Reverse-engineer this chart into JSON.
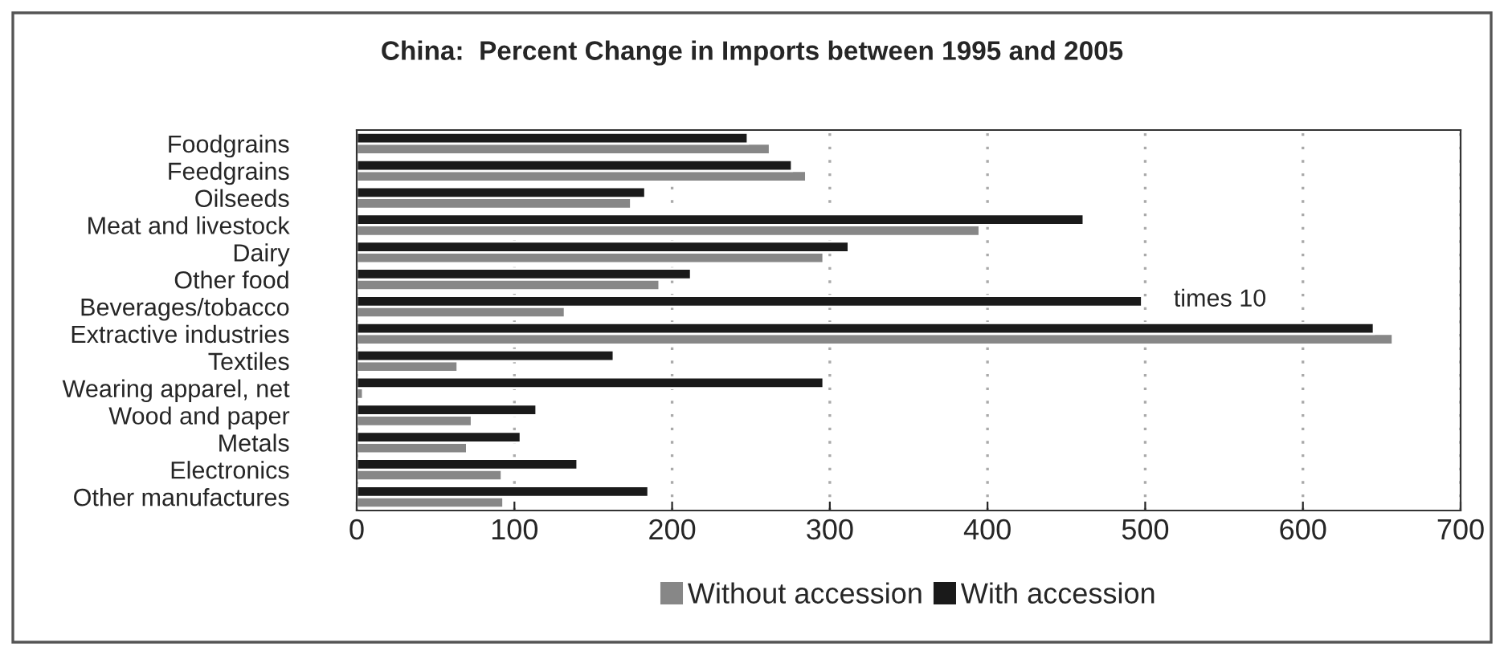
{
  "chart_data": {
    "type": "bar",
    "orientation": "horizontal",
    "title": "China:  Percent Change in Imports between 1995 and 2005",
    "categories": [
      "Foodgrains",
      "Feedgrains",
      "Oilseeds",
      "Meat and livestock",
      "Dairy",
      "Other food",
      "Beverages/tobacco",
      "Extractive industries",
      "Textiles",
      "Wearing apparel, net",
      "Wood and paper",
      "Metals",
      "Electronics",
      "Other manufactures"
    ],
    "series": [
      {
        "name": "Without accession",
        "color": "#878787",
        "values": [
          262,
          285,
          174,
          395,
          296,
          192,
          132,
          657,
          64,
          4,
          73,
          70,
          92,
          93
        ]
      },
      {
        "name": "With accession",
        "color": "#1a1a1a",
        "values": [
          248,
          276,
          183,
          461,
          312,
          212,
          498,
          645,
          163,
          296,
          114,
          104,
          140,
          185
        ]
      }
    ],
    "xlim": [
      0,
      700
    ],
    "xticks": [
      0,
      100,
      200,
      300,
      400,
      500,
      600,
      700
    ],
    "grid": "x",
    "legend": "bottom",
    "annotations": [
      "times 10"
    ]
  }
}
